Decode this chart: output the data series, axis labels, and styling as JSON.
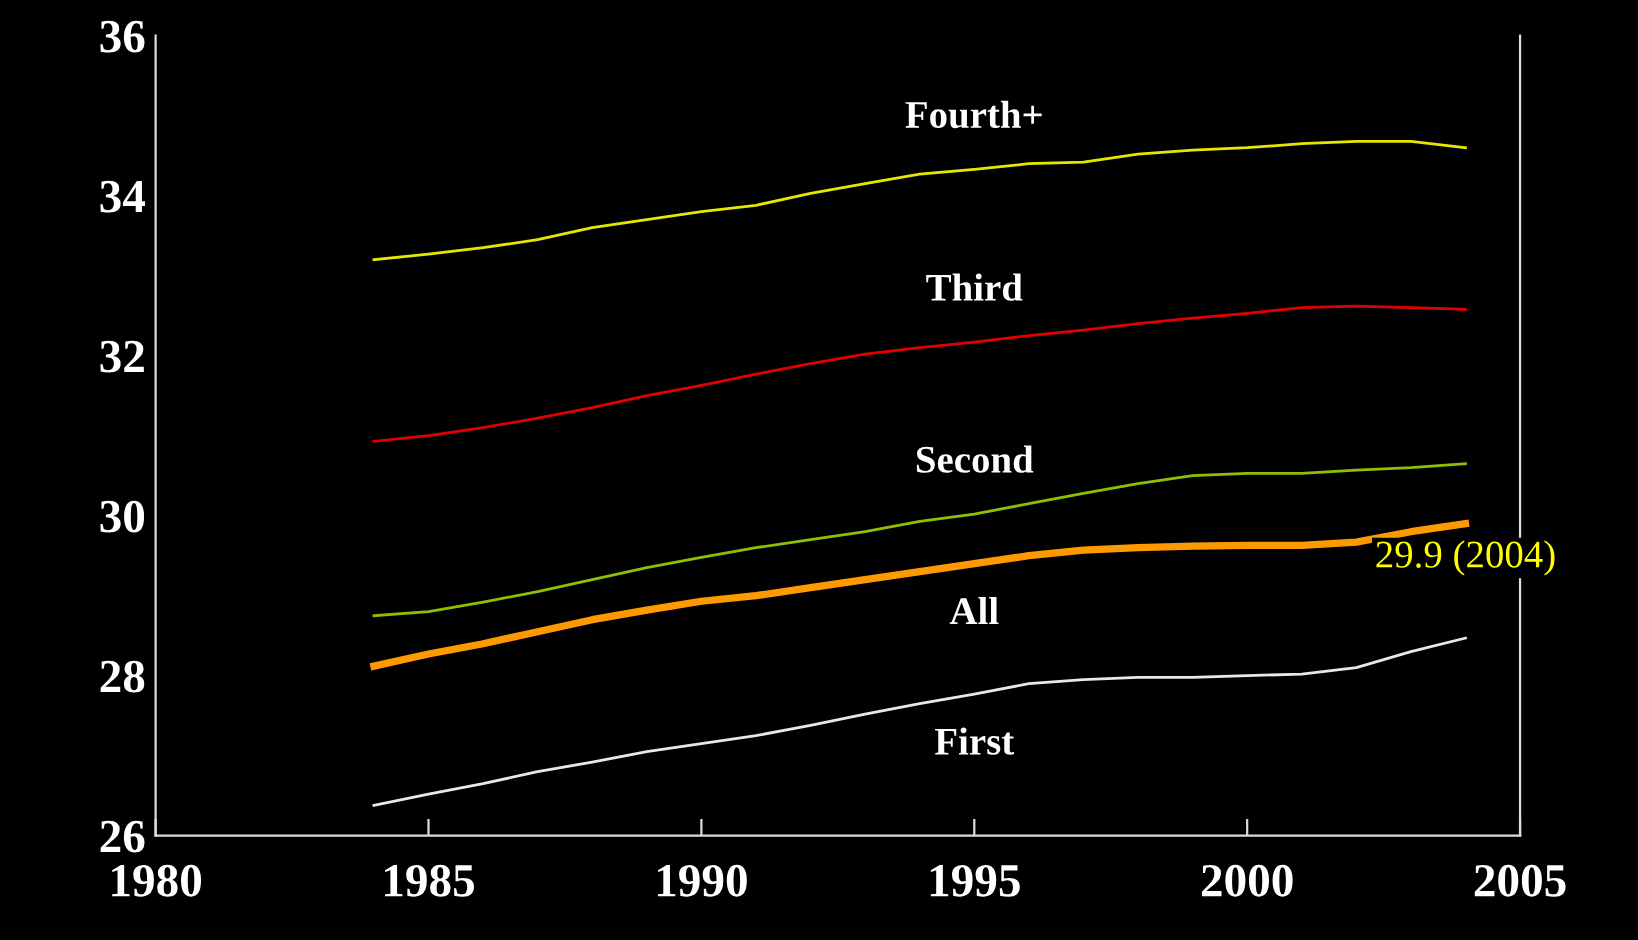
{
  "chart_data": {
    "type": "line",
    "x": [
      1984,
      1985,
      1986,
      1987,
      1988,
      1989,
      1990,
      1991,
      1992,
      1993,
      1994,
      1995,
      1996,
      1997,
      1998,
      1999,
      2000,
      2001,
      2002,
      2003,
      2004
    ],
    "series": [
      {
        "name": "Fourth+",
        "color": "#e6e600",
        "values": [
          33.2,
          33.27,
          33.35,
          33.45,
          33.6,
          33.7,
          33.8,
          33.88,
          34.03,
          34.15,
          34.27,
          34.33,
          34.4,
          34.42,
          34.52,
          34.57,
          34.6,
          34.65,
          34.68,
          34.68,
          34.6
        ]
      },
      {
        "name": "Third",
        "color": "#e00000",
        "values": [
          30.93,
          31.0,
          31.1,
          31.22,
          31.35,
          31.5,
          31.63,
          31.77,
          31.9,
          32.02,
          32.1,
          32.17,
          32.25,
          32.32,
          32.4,
          32.47,
          32.53,
          32.6,
          32.62,
          32.6,
          32.58
        ]
      },
      {
        "name": "Second",
        "color": "#8fbf00",
        "values": [
          28.75,
          28.8,
          28.92,
          29.05,
          29.2,
          29.35,
          29.48,
          29.6,
          29.7,
          29.8,
          29.93,
          30.02,
          30.15,
          30.28,
          30.4,
          30.5,
          30.53,
          30.53,
          30.57,
          30.6,
          30.65
        ]
      },
      {
        "name": "All",
        "color": "#ff9900",
        "values": [
          28.12,
          28.27,
          28.4,
          28.55,
          28.7,
          28.82,
          28.93,
          29.0,
          29.1,
          29.2,
          29.3,
          29.4,
          29.5,
          29.57,
          29.6,
          29.62,
          29.63,
          29.63,
          29.67,
          29.8,
          29.9
        ]
      },
      {
        "name": "First",
        "color": "#e8e8e8",
        "values": [
          26.38,
          26.52,
          26.65,
          26.8,
          26.92,
          27.05,
          27.15,
          27.25,
          27.38,
          27.52,
          27.65,
          27.77,
          27.9,
          27.95,
          27.98,
          27.98,
          28.0,
          28.02,
          28.1,
          28.3,
          28.47
        ]
      }
    ],
    "xlim": [
      1980,
      2005
    ],
    "xticks": [
      1980,
      1985,
      1990,
      1995,
      2000,
      2005
    ],
    "ylim": [
      26,
      36
    ],
    "yticks": [
      26,
      28,
      30,
      32,
      34,
      36
    ],
    "grid": false,
    "legend": false,
    "marker": "none",
    "line_style": "solid",
    "annotations": [
      {
        "text": "29.9 (2004)",
        "x": 2004,
        "y": 29.9
      }
    ]
  }
}
